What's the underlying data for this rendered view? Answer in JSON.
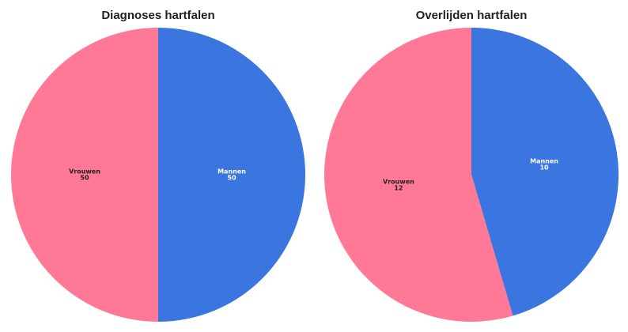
{
  "chart_data": [
    {
      "type": "pie",
      "title": "Diagnoses hartfalen",
      "categories": [
        "Mannen",
        "Vrouwen"
      ],
      "values": [
        50,
        50
      ],
      "colors": [
        "#3b75e0",
        "#ff7896"
      ],
      "label_colors": [
        "#ffffff",
        "#222222"
      ]
    },
    {
      "type": "pie",
      "title": "Overlijden hartfalen",
      "categories": [
        "Mannen",
        "Vrouwen"
      ],
      "values": [
        10,
        12
      ],
      "colors": [
        "#3b75e0",
        "#ff7896"
      ],
      "label_colors": [
        "#ffffff",
        "#222222"
      ]
    }
  ]
}
